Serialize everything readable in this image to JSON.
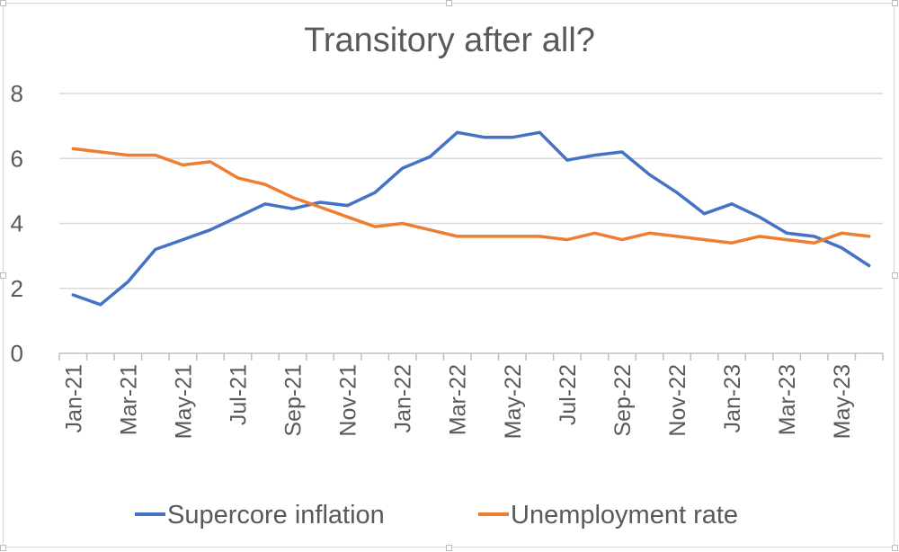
{
  "chart_data": {
    "type": "line",
    "title": "Transitory after all?",
    "xlabel": "",
    "ylabel": "",
    "ylim": [
      0,
      8
    ],
    "yticks": [
      "0",
      "2",
      "4",
      "6",
      "8"
    ],
    "grid": true,
    "legend_position": "bottom",
    "x": [
      "Jan-21",
      "Feb-21",
      "Mar-21",
      "Apr-21",
      "May-21",
      "Jun-21",
      "Jul-21",
      "Aug-21",
      "Sep-21",
      "Oct-21",
      "Nov-21",
      "Dec-21",
      "Jan-22",
      "Feb-22",
      "Mar-22",
      "Apr-22",
      "May-22",
      "Jun-22",
      "Jul-22",
      "Aug-22",
      "Sep-22",
      "Oct-22",
      "Nov-22",
      "Dec-22",
      "Jan-23",
      "Feb-23",
      "Mar-23",
      "Apr-23",
      "May-23",
      "Jun-23"
    ],
    "xtick_labels": [
      "Jan-21",
      "Mar-21",
      "May-21",
      "Jul-21",
      "Sep-21",
      "Nov-21",
      "Jan-22",
      "Mar-22",
      "May-22",
      "Jul-22",
      "Sep-22",
      "Nov-22",
      "Jan-23",
      "Mar-23",
      "May-23"
    ],
    "series": [
      {
        "name": "Supercore inflation",
        "color": "#4472c4",
        "values": [
          1.8,
          1.5,
          2.2,
          3.2,
          3.5,
          3.8,
          4.2,
          4.6,
          4.45,
          4.65,
          4.55,
          4.95,
          5.7,
          6.05,
          6.8,
          6.65,
          6.65,
          6.8,
          5.95,
          6.1,
          6.2,
          5.5,
          4.95,
          4.3,
          4.6,
          4.2,
          3.7,
          3.6,
          3.25,
          2.7
        ]
      },
      {
        "name": "Unemployment rate",
        "color": "#ed7d31",
        "values": [
          6.3,
          6.2,
          6.1,
          6.1,
          5.8,
          5.9,
          5.4,
          5.2,
          4.8,
          4.5,
          4.2,
          3.9,
          4.0,
          3.8,
          3.6,
          3.6,
          3.6,
          3.6,
          3.5,
          3.7,
          3.5,
          3.7,
          3.6,
          3.5,
          3.4,
          3.6,
          3.5,
          3.4,
          3.7,
          3.6
        ]
      }
    ]
  }
}
